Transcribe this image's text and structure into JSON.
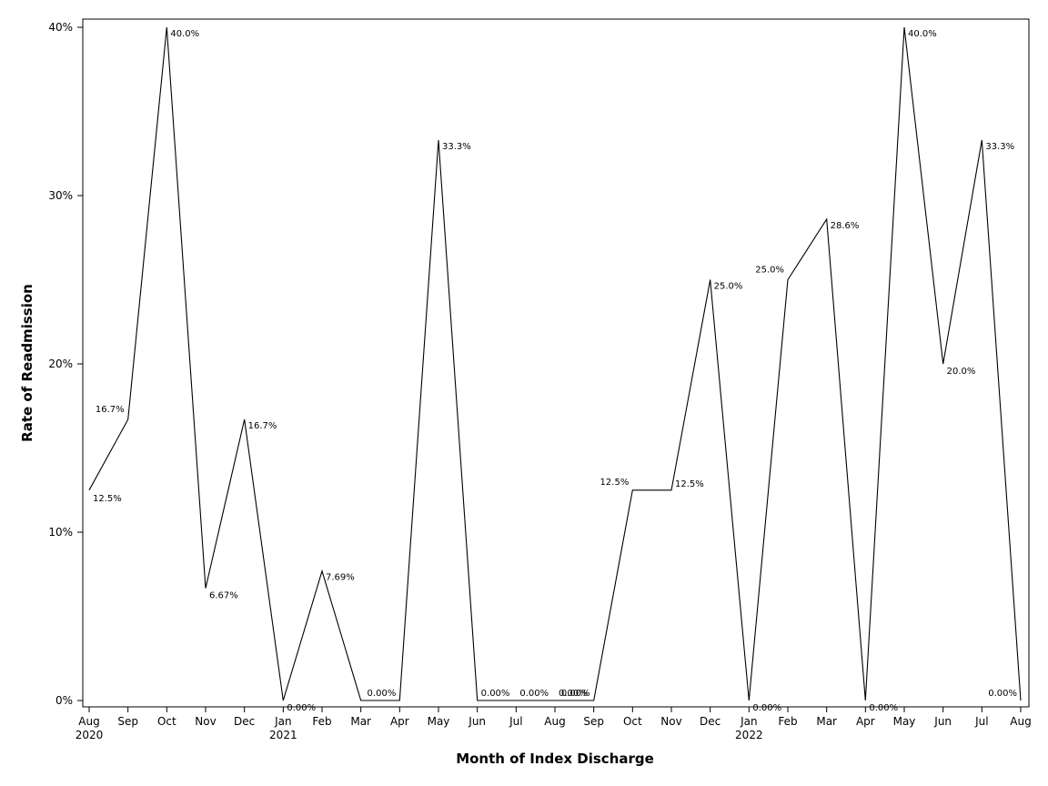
{
  "chart_data": {
    "type": "line",
    "xlabel": "Month of Index Discharge",
    "ylabel": "Rate of Readmission",
    "ylim": [
      0,
      40
    ],
    "yticks": [
      0,
      10,
      20,
      30,
      40
    ],
    "ytick_labels": [
      "0%",
      "10%",
      "20%",
      "30%",
      "40%"
    ],
    "grid": false,
    "legend": "none",
    "x": [
      "2020-08",
      "2020-09",
      "2020-10",
      "2020-11",
      "2020-12",
      "2021-01",
      "2021-02",
      "2021-03",
      "2021-04",
      "2021-05",
      "2021-06",
      "2021-07",
      "2021-08",
      "2021-09",
      "2021-10",
      "2021-11",
      "2021-12",
      "2022-01",
      "2022-02",
      "2022-03",
      "2022-04",
      "2022-05",
      "2022-06",
      "2022-07",
      "2022-08"
    ],
    "x_tick_labels": [
      "Aug",
      "Sep",
      "Oct",
      "Nov",
      "Dec",
      "Jan",
      "Feb",
      "Mar",
      "Apr",
      "May",
      "Jun",
      "Jul",
      "Aug",
      "Sep",
      "Oct",
      "Nov",
      "Dec",
      "Jan",
      "Feb",
      "Mar",
      "Apr",
      "May",
      "Jun",
      "Jul",
      "Aug"
    ],
    "x_year_labels": [
      "2020",
      "",
      "",
      "",
      "",
      "2021",
      "",
      "",
      "",
      "",
      "",
      "",
      "",
      "",
      "",
      "",
      "",
      "2022",
      "",
      "",
      "",
      "",
      "",
      "",
      ""
    ],
    "series": [
      {
        "values": [
          12.5,
          16.7,
          40.0,
          6.67,
          16.7,
          0,
          7.69,
          0,
          0,
          33.3,
          0,
          0,
          0,
          0,
          12.5,
          12.5,
          25.0,
          0,
          25.0,
          28.6,
          0,
          40.0,
          20.0,
          33.3,
          0
        ],
        "labels": [
          "12.5%",
          "16.7%",
          "40.0%",
          "6.67%",
          "16.7%",
          "0.00%",
          "7.69%",
          "",
          "0.00%",
          "33.3%",
          "0.00%",
          "0.00%",
          "0.00%",
          "0.00%",
          "12.5%",
          "12.5%",
          "25.0%",
          "0.00%",
          "25.0%",
          "28.6%",
          "0.00%",
          "40.0%",
          "20.0%",
          "33.3%",
          "0.00%"
        ]
      }
    ]
  }
}
